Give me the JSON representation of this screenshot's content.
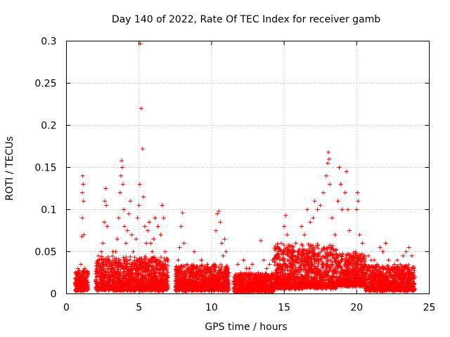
{
  "chart_data": {
    "type": "scatter",
    "title": "Day 140 of 2022, Rate Of TEC Index for receiver gamb",
    "xlabel": "GPS time / hours",
    "ylabel": "ROTI / TECUs",
    "xlim": [
      0,
      25
    ],
    "ylim": [
      0,
      0.3
    ],
    "x_ticks": [
      0,
      5,
      10,
      15,
      20,
      25
    ],
    "x_tick_labels": [
      "0",
      "5",
      "10",
      "15",
      "20",
      "25"
    ],
    "y_ticks": [
      0,
      0.05,
      0.1,
      0.15,
      0.2,
      0.25,
      0.3
    ],
    "y_tick_labels": [
      "0",
      "0.05",
      "0.1",
      "0.15",
      "0.2",
      "0.25",
      "0.3"
    ],
    "grid": true,
    "marker": "plus",
    "color": "#ff0000",
    "series": [
      {
        "points": [
          [
            0.7,
            0.012
          ],
          [
            0.75,
            0.02
          ],
          [
            0.8,
            0.03
          ],
          [
            0.85,
            0.018
          ],
          [
            0.9,
            0.025
          ],
          [
            0.95,
            0.01
          ],
          [
            1.0,
            0.035
          ],
          [
            1.05,
            0.068
          ],
          [
            1.1,
            0.09
          ],
          [
            1.1,
            0.12
          ],
          [
            1.12,
            0.14
          ],
          [
            1.15,
            0.13
          ],
          [
            1.18,
            0.11
          ],
          [
            1.2,
            0.07
          ],
          [
            1.25,
            0.03
          ],
          [
            1.3,
            0.015
          ],
          [
            1.35,
            0.005
          ],
          [
            2.1,
            0.02
          ],
          [
            2.2,
            0.045
          ],
          [
            2.3,
            0.03
          ],
          [
            2.4,
            0.05
          ],
          [
            2.5,
            0.06
          ],
          [
            2.6,
            0.085
          ],
          [
            2.65,
            0.11
          ],
          [
            2.7,
            0.125
          ],
          [
            2.75,
            0.105
          ],
          [
            2.8,
            0.08
          ],
          [
            2.9,
            0.04
          ],
          [
            3.0,
            0.02
          ],
          [
            3.1,
            0.03
          ],
          [
            3.2,
            0.05
          ],
          [
            3.3,
            0.035
          ],
          [
            3.4,
            0.05
          ],
          [
            3.5,
            0.065
          ],
          [
            3.6,
            0.09
          ],
          [
            3.7,
            0.12
          ],
          [
            3.75,
            0.14
          ],
          [
            3.8,
            0.158
          ],
          [
            3.85,
            0.15
          ],
          [
            3.9,
            0.13
          ],
          [
            3.95,
            0.1
          ],
          [
            4.0,
            0.08
          ],
          [
            4.1,
            0.06
          ],
          [
            4.2,
            0.075
          ],
          [
            4.3,
            0.095
          ],
          [
            4.4,
            0.11
          ],
          [
            4.5,
            0.07
          ],
          [
            4.6,
            0.05
          ],
          [
            4.7,
            0.04
          ],
          [
            4.8,
            0.065
          ],
          [
            4.9,
            0.09
          ],
          [
            5.0,
            0.105
          ],
          [
            5.05,
            0.13
          ],
          [
            5.1,
            0.297
          ],
          [
            5.15,
            0.22
          ],
          [
            5.25,
            0.172
          ],
          [
            5.3,
            0.115
          ],
          [
            5.4,
            0.08
          ],
          [
            5.5,
            0.06
          ],
          [
            5.6,
            0.075
          ],
          [
            5.7,
            0.085
          ],
          [
            5.8,
            0.06
          ],
          [
            5.9,
            0.05
          ],
          [
            6.0,
            0.065
          ],
          [
            6.1,
            0.09
          ],
          [
            6.3,
            0.08
          ],
          [
            6.5,
            0.07
          ],
          [
            6.6,
            0.105
          ],
          [
            6.7,
            0.09
          ],
          [
            6.8,
            0.05
          ],
          [
            6.9,
            0.02
          ],
          [
            7.6,
            0.02
          ],
          [
            7.7,
            0.04
          ],
          [
            7.8,
            0.055
          ],
          [
            7.9,
            0.08
          ],
          [
            8.0,
            0.096
          ],
          [
            8.1,
            0.06
          ],
          [
            8.3,
            0.035
          ],
          [
            8.5,
            0.025
          ],
          [
            8.8,
            0.05
          ],
          [
            9.0,
            0.03
          ],
          [
            9.3,
            0.04
          ],
          [
            9.5,
            0.025
          ],
          [
            9.7,
            0.035
          ],
          [
            9.9,
            0.02
          ],
          [
            10.2,
            0.035
          ],
          [
            10.3,
            0.075
          ],
          [
            10.4,
            0.095
          ],
          [
            10.5,
            0.098
          ],
          [
            10.6,
            0.085
          ],
          [
            10.7,
            0.06
          ],
          [
            10.8,
            0.045
          ],
          [
            10.9,
            0.065
          ],
          [
            11.0,
            0.05
          ],
          [
            11.1,
            0.03
          ],
          [
            11.6,
            0.02
          ],
          [
            11.8,
            0.035
          ],
          [
            12.0,
            0.025
          ],
          [
            12.2,
            0.04
          ],
          [
            12.4,
            0.03
          ],
          [
            12.6,
            0.03
          ],
          [
            12.8,
            0.035
          ],
          [
            13.0,
            0.02
          ],
          [
            13.2,
            0.025
          ],
          [
            13.4,
            0.063
          ],
          [
            13.6,
            0.04
          ],
          [
            13.8,
            0.03
          ],
          [
            14.0,
            0.035
          ],
          [
            14.2,
            0.04
          ],
          [
            14.4,
            0.045
          ],
          [
            14.6,
            0.05
          ],
          [
            14.8,
            0.06
          ],
          [
            15.0,
            0.08
          ],
          [
            15.1,
            0.093
          ],
          [
            15.2,
            0.07
          ],
          [
            15.4,
            0.05
          ],
          [
            15.6,
            0.045
          ],
          [
            15.8,
            0.06
          ],
          [
            16.0,
            0.05
          ],
          [
            16.2,
            0.08
          ],
          [
            16.4,
            0.07
          ],
          [
            16.6,
            0.1
          ],
          [
            16.8,
            0.085
          ],
          [
            17.0,
            0.09
          ],
          [
            17.1,
            0.11
          ],
          [
            17.3,
            0.1
          ],
          [
            17.5,
            0.105
          ],
          [
            17.7,
            0.12
          ],
          [
            17.9,
            0.14
          ],
          [
            18.0,
            0.155
          ],
          [
            18.05,
            0.168
          ],
          [
            18.1,
            0.16
          ],
          [
            18.15,
            0.13
          ],
          [
            18.3,
            0.09
          ],
          [
            18.5,
            0.07
          ],
          [
            18.7,
            0.11
          ],
          [
            18.8,
            0.15
          ],
          [
            18.9,
            0.13
          ],
          [
            19.0,
            0.1
          ],
          [
            19.2,
            0.12
          ],
          [
            19.3,
            0.145
          ],
          [
            19.4,
            0.1
          ],
          [
            19.5,
            0.075
          ],
          [
            19.7,
            0.04
          ],
          [
            19.9,
            0.05
          ],
          [
            20.0,
            0.1
          ],
          [
            20.05,
            0.12
          ],
          [
            20.1,
            0.11
          ],
          [
            20.2,
            0.07
          ],
          [
            20.4,
            0.06
          ],
          [
            20.6,
            0.035
          ],
          [
            20.8,
            0.045
          ],
          [
            21.0,
            0.04
          ],
          [
            21.2,
            0.04
          ],
          [
            21.4,
            0.035
          ],
          [
            21.6,
            0.055
          ],
          [
            21.8,
            0.05
          ],
          [
            22.0,
            0.06
          ],
          [
            22.2,
            0.04
          ],
          [
            22.4,
            0.03
          ],
          [
            22.6,
            0.035
          ],
          [
            22.8,
            0.04
          ],
          [
            23.0,
            0.035
          ],
          [
            23.2,
            0.045
          ],
          [
            23.4,
            0.05
          ],
          [
            23.6,
            0.055
          ],
          [
            23.8,
            0.045
          ],
          [
            23.9,
            0.03
          ]
        ]
      }
    ],
    "dense_segments": [
      {
        "x_range": [
          0.6,
          1.5
        ],
        "y_min": 0.003,
        "y_max": 0.03
      },
      {
        "x_range": [
          2.0,
          7.0
        ],
        "y_min": 0.003,
        "y_max": 0.045
      },
      {
        "x_range": [
          7.5,
          11.2
        ],
        "y_min": 0.003,
        "y_max": 0.035
      },
      {
        "x_range": [
          11.5,
          14.3
        ],
        "y_min": 0.002,
        "y_max": 0.025
      },
      {
        "x_range": [
          14.3,
          18.6
        ],
        "y_min": 0.005,
        "y_max": 0.06
      },
      {
        "x_range": [
          18.6,
          20.6
        ],
        "y_min": 0.008,
        "y_max": 0.05
      },
      {
        "x_range": [
          20.6,
          24.0
        ],
        "y_min": 0.003,
        "y_max": 0.035
      }
    ]
  }
}
